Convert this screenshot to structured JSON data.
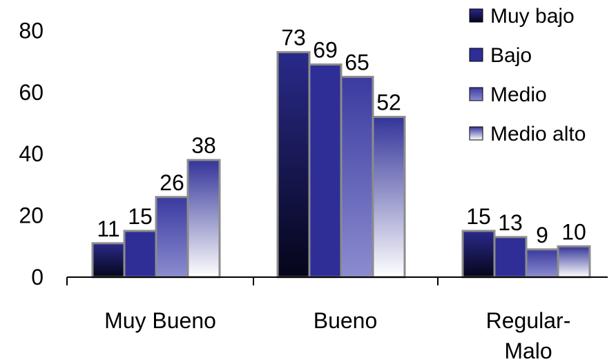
{
  "chart_data": {
    "type": "bar",
    "categories": [
      "Muy Bueno",
      "Bueno",
      "Regular-Malo"
    ],
    "series": [
      {
        "name": "Muy bajo",
        "values": [
          11,
          73,
          15
        ],
        "labels": [
          "11",
          "73",
          "15"
        ]
      },
      {
        "name": "Bajo",
        "values": [
          15,
          69,
          13
        ],
        "labels": [
          "15",
          "69",
          "13"
        ]
      },
      {
        "name": "Medio",
        "values": [
          26,
          65,
          9
        ],
        "labels": [
          "26",
          "65",
          "9"
        ]
      },
      {
        "name": "Medio alto",
        "values": [
          38,
          52,
          10
        ],
        "labels": [
          "38",
          "52",
          "10"
        ]
      }
    ],
    "y_ticks": [
      "0",
      "20",
      "40",
      "60",
      "80"
    ],
    "ylim": [
      0,
      80
    ],
    "xlabel": "",
    "ylabel": "",
    "title": "",
    "legend": "top-right",
    "grid": false,
    "colors": {
      "muy_bajo_top": "#2a2a8a",
      "muy_bajo_bottom": "#05051a",
      "bajo": "#2e2e96",
      "medio_top": "#3a3aa0",
      "medio_bottom": "#8c8cd0",
      "medio_alto_top": "#34349a",
      "medio_alto_bottom": "#ffffff",
      "bar_border": "#8c8c8c",
      "axis": "#000000"
    }
  }
}
